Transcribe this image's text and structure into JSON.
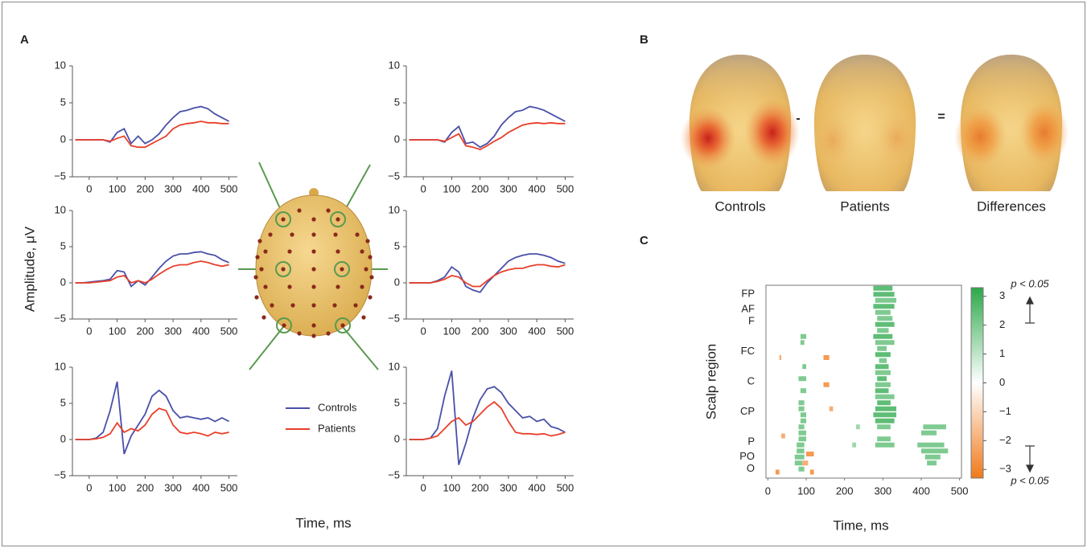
{
  "panel_labels": [
    "A",
    "B",
    "C"
  ],
  "panel_a": {
    "ylabel": "Amplitude, μV",
    "xlabel": "Time, ms"
  },
  "topographies": {
    "labels": [
      "Controls",
      "Patients",
      "Differences"
    ],
    "operators": [
      "-",
      "="
    ]
  },
  "chart_data": [
    {
      "type": "line",
      "x": [
        -50,
        -25,
        0,
        25,
        50,
        75,
        100,
        125,
        150,
        175,
        200,
        225,
        250,
        275,
        300,
        325,
        350,
        375,
        400,
        425,
        450,
        475,
        500
      ],
      "xlim": [
        -60,
        530
      ],
      "xticks": [
        0,
        100,
        200,
        300,
        400,
        500
      ],
      "ylim": [
        -5,
        10
      ],
      "yticks": [
        {
          "value": -5,
          "label": "−5"
        },
        0,
        5,
        10
      ],
      "series": [
        {
          "color": "#4a50a8",
          "values": [
            0,
            0,
            0,
            0,
            0,
            -0.3,
            1,
            1.5,
            -0.5,
            0.5,
            -0.5,
            0,
            0.8,
            2,
            3,
            3.8,
            4,
            4.3,
            4.5,
            4.2,
            3.5,
            3,
            2.5
          ]
        },
        {
          "color": "#e8402a",
          "values": [
            0,
            0,
            0,
            0,
            0,
            -0.2,
            0.2,
            0.5,
            -0.8,
            -1,
            -1,
            -0.5,
            0,
            0.5,
            1.5,
            2,
            2.2,
            2.3,
            2.5,
            2.3,
            2.3,
            2.2,
            2.2
          ]
        }
      ]
    },
    {
      "type": "line",
      "x": [
        -50,
        -25,
        0,
        25,
        50,
        75,
        100,
        125,
        150,
        175,
        200,
        225,
        250,
        275,
        300,
        325,
        350,
        375,
        400,
        425,
        450,
        475,
        500
      ],
      "xlim": [
        -60,
        530
      ],
      "xticks": [
        0,
        100,
        200,
        300,
        400,
        500
      ],
      "ylim": [
        -5,
        10
      ],
      "yticks": [
        {
          "value": -5,
          "label": "−5"
        },
        0,
        5,
        10
      ],
      "series": [
        {
          "color": "#4a50a8",
          "values": [
            0,
            0,
            0,
            0,
            0,
            -0.3,
            1,
            1.8,
            -0.5,
            -0.3,
            -1,
            -0.5,
            0.5,
            2,
            3,
            3.8,
            4,
            4.5,
            4.3,
            4,
            3.5,
            3,
            2.5
          ]
        },
        {
          "color": "#e8402a",
          "values": [
            0,
            0,
            0,
            0,
            0,
            -0.2,
            0.3,
            0.8,
            -0.8,
            -1,
            -1.3,
            -0.8,
            -0.2,
            0.3,
            1,
            1.5,
            2,
            2.2,
            2.3,
            2.2,
            2.3,
            2.2,
            2.2
          ]
        }
      ]
    },
    {
      "type": "line",
      "x": [
        -50,
        -25,
        0,
        25,
        50,
        75,
        100,
        125,
        150,
        175,
        200,
        225,
        250,
        275,
        300,
        325,
        350,
        375,
        400,
        425,
        450,
        475,
        500
      ],
      "xlim": [
        -60,
        530
      ],
      "xticks": [
        0,
        100,
        200,
        300,
        400,
        500
      ],
      "ylim": [
        -5,
        10
      ],
      "yticks": [
        {
          "value": -5,
          "label": "−5"
        },
        0,
        5,
        10
      ],
      "series": [
        {
          "color": "#4a50a8",
          "values": [
            0,
            0,
            0.1,
            0.2,
            0.3,
            0.5,
            1.7,
            1.5,
            -0.5,
            0.3,
            -0.3,
            0.8,
            2,
            3,
            3.7,
            4,
            4,
            4.2,
            4.3,
            4,
            3.8,
            3.2,
            2.8
          ]
        },
        {
          "color": "#e8402a",
          "values": [
            0,
            0,
            0,
            0.1,
            0.2,
            0.3,
            0.8,
            1,
            0,
            0.3,
            0,
            0.5,
            1.2,
            1.8,
            2.3,
            2.5,
            2.5,
            2.8,
            3,
            2.8,
            2.5,
            2.3,
            2.5
          ]
        }
      ]
    },
    {
      "type": "line",
      "x": [
        -50,
        -25,
        0,
        25,
        50,
        75,
        100,
        125,
        150,
        175,
        200,
        225,
        250,
        275,
        300,
        325,
        350,
        375,
        400,
        425,
        450,
        475,
        500
      ],
      "xlim": [
        -60,
        530
      ],
      "xticks": [
        0,
        100,
        200,
        300,
        400,
        500
      ],
      "ylim": [
        -5,
        10
      ],
      "yticks": [
        {
          "value": -5,
          "label": "−5"
        },
        0,
        5,
        10
      ],
      "series": [
        {
          "color": "#4a50a8",
          "values": [
            0,
            0,
            0,
            0,
            0.3,
            0.8,
            2.2,
            1.5,
            -0.5,
            -1,
            -1.3,
            0,
            1,
            2,
            3,
            3.5,
            3.8,
            4,
            4,
            3.8,
            3.5,
            3,
            2.7
          ]
        },
        {
          "color": "#e8402a",
          "values": [
            0,
            0,
            0,
            0,
            0.2,
            0.5,
            1,
            0.8,
            0,
            -0.5,
            -0.5,
            0.3,
            1,
            1.5,
            1.8,
            2,
            2,
            2.3,
            2.5,
            2.5,
            2.3,
            2.2,
            2.5
          ]
        }
      ]
    },
    {
      "type": "line",
      "x": [
        -50,
        -25,
        0,
        25,
        50,
        75,
        100,
        125,
        150,
        175,
        200,
        225,
        250,
        275,
        300,
        325,
        350,
        375,
        400,
        425,
        450,
        475,
        500
      ],
      "xlim": [
        -60,
        530
      ],
      "xticks": [
        0,
        100,
        200,
        300,
        400,
        500
      ],
      "ylim": [
        -5,
        10
      ],
      "yticks": [
        {
          "value": -5,
          "label": "−5"
        },
        0,
        5,
        10
      ],
      "series": [
        {
          "name": "Controls",
          "color": "#4a50a8",
          "values": [
            0,
            0,
            0,
            0.2,
            1,
            4,
            8,
            -2,
            0.5,
            2,
            3.5,
            6,
            6.8,
            6,
            4,
            3,
            3.2,
            3,
            2.8,
            3,
            2.5,
            3,
            2.5
          ]
        },
        {
          "name": "Patients",
          "color": "#e8402a",
          "values": [
            0,
            0,
            0,
            0.1,
            0.3,
            0.8,
            2.3,
            1,
            1.5,
            1.2,
            2,
            3.5,
            4.3,
            4,
            2,
            1,
            0.8,
            1,
            0.8,
            0.5,
            1,
            0.8,
            1
          ]
        }
      ]
    },
    {
      "type": "line",
      "x": [
        -50,
        -25,
        0,
        25,
        50,
        75,
        100,
        125,
        150,
        175,
        200,
        225,
        250,
        275,
        300,
        325,
        350,
        375,
        400,
        425,
        450,
        475,
        500
      ],
      "xlim": [
        -60,
        530
      ],
      "xticks": [
        0,
        100,
        200,
        300,
        400,
        500
      ],
      "ylim": [
        -5,
        10
      ],
      "yticks": [
        {
          "value": -5,
          "label": "−5"
        },
        0,
        5,
        10
      ],
      "series": [
        {
          "color": "#4a50a8",
          "values": [
            0,
            0,
            0,
            0.2,
            1.5,
            6,
            9.5,
            -3.5,
            -0.5,
            3,
            5.5,
            7,
            7.3,
            6.5,
            5,
            4,
            3,
            3.2,
            2.5,
            2.8,
            1.8,
            1.5,
            1
          ]
        },
        {
          "color": "#e8402a",
          "values": [
            0,
            0,
            0,
            0.2,
            0.5,
            1.5,
            2.5,
            3,
            2,
            2.5,
            3.5,
            4.5,
            5.2,
            4.3,
            2.5,
            1,
            0.8,
            0.8,
            0.7,
            0.8,
            0.5,
            0.7,
            1
          ]
        }
      ]
    },
    {
      "type": "heatmap",
      "xlabel": "Time, ms",
      "ylabel": "Scalp region",
      "xlim": [
        -5,
        505
      ],
      "xticks": [
        0,
        100,
        200,
        300,
        400,
        500
      ],
      "ylim": [
        0,
        64
      ],
      "yticks": [
        {
          "value": 3,
          "label": "FP"
        },
        {
          "value": 8,
          "label": "AF"
        },
        {
          "value": 12,
          "label": "F"
        },
        {
          "value": 22,
          "label": "FC"
        },
        {
          "value": 32,
          "label": "C"
        },
        {
          "value": 42,
          "label": "CP"
        },
        {
          "value": 52,
          "label": "P"
        },
        {
          "value": 57,
          "label": "PO"
        },
        {
          "value": 61,
          "label": "O"
        }
      ],
      "x_start": [
        275,
        275,
        280,
        275,
        280,
        285,
        280,
        285,
        275,
        280,
        285,
        280,
        290,
        280,
        280,
        285,
        280,
        280,
        280,
        285,
        280,
        275,
        280,
        285,
        285,
        280,
        85,
        85,
        90,
        80,
        85,
        80,
        80,
        85,
        85,
        80,
        80,
        80,
        75,
        75,
        70,
        70,
        80,
        30,
        145,
        145,
        160,
        35,
        100,
        90,
        20,
        110,
        405,
        400,
        390,
        400,
        410,
        415,
        230,
        220
      ],
      "x_end": [
        325,
        330,
        335,
        330,
        320,
        325,
        330,
        315,
        325,
        330,
        310,
        320,
        310,
        315,
        320,
        310,
        320,
        315,
        330,
        320,
        335,
        335,
        330,
        320,
        320,
        330,
        100,
        95,
        100,
        100,
        100,
        95,
        95,
        100,
        100,
        95,
        100,
        100,
        95,
        95,
        95,
        90,
        95,
        35,
        160,
        160,
        170,
        45,
        120,
        105,
        30,
        120,
        465,
        440,
        460,
        470,
        450,
        440,
        240,
        230
      ],
      "y": [
        1,
        3,
        5,
        7,
        9,
        11,
        13,
        15,
        17,
        19,
        21,
        23,
        25,
        27,
        29,
        31,
        33,
        35,
        37,
        39,
        41,
        43,
        45,
        47,
        51,
        53,
        17,
        19,
        27,
        31,
        35,
        39,
        41,
        43,
        45,
        47,
        49,
        51,
        53,
        55,
        57,
        59,
        61,
        24,
        24,
        33,
        41,
        50,
        56,
        59,
        62,
        62,
        47,
        49,
        53,
        55,
        57,
        59,
        47,
        53
      ],
      "values": [
        2.5,
        2.5,
        2,
        2.5,
        2,
        2,
        2.5,
        2,
        2.5,
        2,
        2,
        2.5,
        2,
        2.5,
        2,
        2.5,
        2,
        2.5,
        2,
        2.5,
        2.5,
        2.5,
        2.5,
        2,
        2,
        2,
        2,
        2,
        2,
        2,
        2,
        2,
        2,
        2,
        2,
        2,
        2,
        2,
        2,
        2,
        2,
        2,
        2,
        -2,
        -2.5,
        -2.5,
        -2,
        -2,
        -2.5,
        -2,
        -2.5,
        -2.5,
        2,
        2,
        2,
        2,
        2,
        2,
        1.5,
        1.5
      ],
      "colorbar": {
        "lim": [
          -3.3,
          3.3
        ],
        "colors": [
          "#f07a1a",
          "#ffffff",
          "#2ca84a"
        ],
        "ticks": [
          3,
          2,
          1,
          0,
          {
            "value": -1,
            "label": "−1"
          },
          {
            "value": -2,
            "label": "−2"
          },
          {
            "value": -3,
            "label": "−3"
          }
        ]
      },
      "annotations": [
        "p < 0.05",
        "p < 0.05"
      ]
    }
  ]
}
